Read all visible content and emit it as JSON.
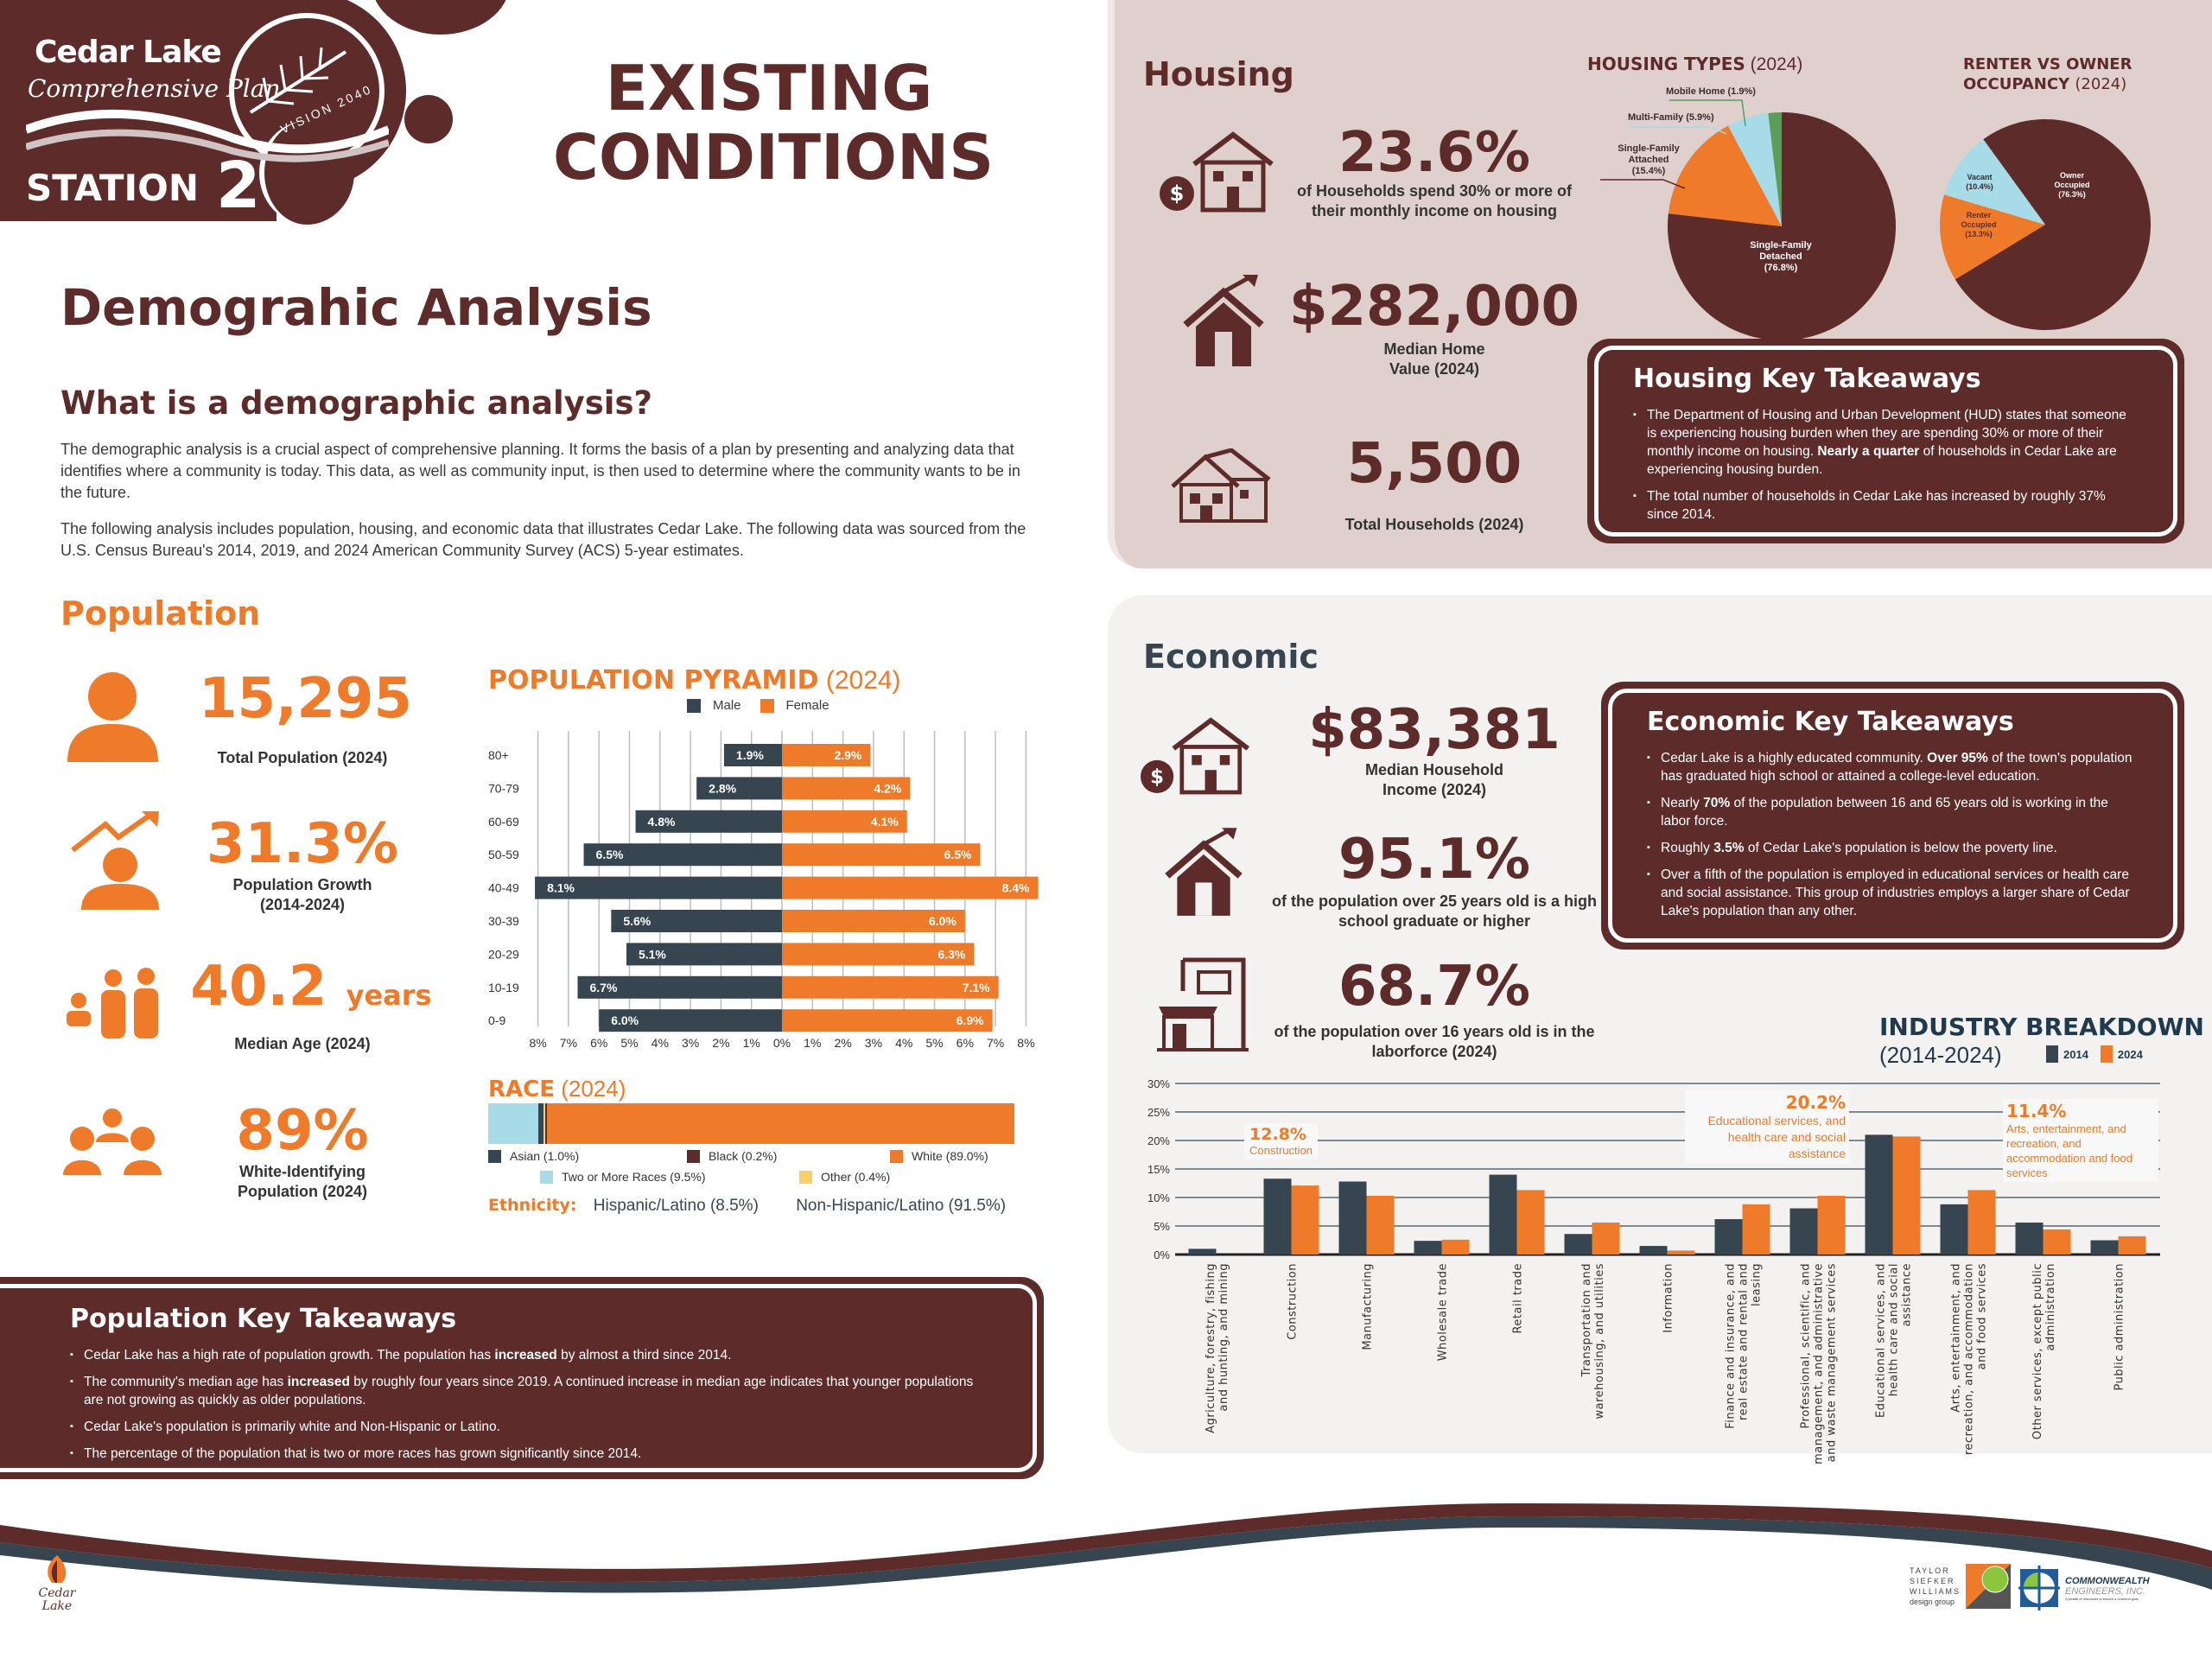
{
  "header": {
    "brand_line1": "Cedar Lake",
    "brand_line2": "Comprehensive Plan",
    "vision": "VISION 2040",
    "station_label": "STATION",
    "station_number": "2",
    "title_line1": "EXISTING",
    "title_line2": "CONDITIONS"
  },
  "intro": {
    "title": "Demograhic Analysis",
    "subtitle": "What is a demographic analysis?",
    "paragraph1": "The demographic analysis is a crucial aspect of comprehensive planning. It forms the basis of a plan by presenting and analyzing data that identifies where a community is today. This data, as well as community input, is then used to determine where the community wants to be in the future.",
    "paragraph2": "The following analysis includes population, housing, and economic data that illustrates Cedar Lake. The following data was sourced from the U.S. Census Bureau's 2014, 2019, and 2024 American Community Survey (ACS) 5-year estimates."
  },
  "population": {
    "heading": "Population",
    "stats": [
      {
        "value": "15,295",
        "label": "Total Population (2024)",
        "icon": "person-icon"
      },
      {
        "value": "31.3%",
        "label": "Population Growth (2014-2024)",
        "icon": "growth-person-icon"
      },
      {
        "value": "40.2",
        "unit": "years",
        "label": "Median Age (2024)",
        "icon": "family-icon"
      },
      {
        "value": "89%",
        "label": "White-Identifying Population (2024)",
        "icon": "group-icon"
      }
    ],
    "takeaways": {
      "title": "Population Key Takeaways",
      "bullets": [
        {
          "pre": "Cedar Lake has a high rate of population growth. The population has ",
          "bold": "increased",
          "post": " by almost a third since 2014."
        },
        {
          "pre": "The community's median age has ",
          "bold": "increased",
          "post": " by roughly four years since 2019. A continued increase in median age indicates that younger populations are not growing as quickly as older populations."
        },
        {
          "pre": "Cedar Lake's population is primarily white and Non-Hispanic or Latino.",
          "bold": "",
          "post": ""
        },
        {
          "pre": "The percentage of the population that is two or more races has grown significantly since 2014.",
          "bold": "",
          "post": ""
        }
      ]
    }
  },
  "race": {
    "title": "RACE",
    "year": "(2024)",
    "segments": [
      {
        "name": "Two or More Races (9.5%)",
        "value": 9.5,
        "color": "#a8dbe8"
      },
      {
        "name": "Asian (1.0%)",
        "value": 1.0,
        "color": "#36454f"
      },
      {
        "name": "Other (0.4%)",
        "value": 0.4,
        "color": "#fbd06b"
      },
      {
        "name": "Black (0.2%)",
        "value": 0.2,
        "color": "#5e2b2b"
      },
      {
        "name": "White (89.0%)",
        "value": 89.0,
        "color": "#ee7a2a"
      }
    ],
    "ethnicity_label": "Ethnicity:",
    "hispanic": "Hispanic/Latino (8.5%)",
    "non_hispanic": "Non-Hispanic/Latino (91.5%)"
  },
  "housing": {
    "heading": "Housing",
    "stats": [
      {
        "value": "23.6%",
        "label": "of Households spend 30% or more of their monthly income on housing"
      },
      {
        "value": "$282,000",
        "label": "Median Home Value (2024)"
      },
      {
        "value": "5,500",
        "label": "Total Households (2024)"
      }
    ],
    "takeaways": {
      "title": "Housing Key Takeaways",
      "bullets": [
        {
          "pre": "The Department of Housing and Urban Development (HUD) states that someone is experiencing housing burden when they are spending 30% or more of their monthly income on housing. ",
          "bold": "Nearly a quarter",
          "post": " of households in Cedar Lake are experiencing housing burden."
        },
        {
          "pre": "The total number of households in Cedar Lake has increased by roughly 37% since 2014.",
          "bold": "",
          "post": ""
        }
      ]
    }
  },
  "economic": {
    "heading": "Economic",
    "stats": [
      {
        "value": "$83,381",
        "label": "Median Household Income (2024)"
      },
      {
        "value": "95.1%",
        "label": "of the population over 25 years old is a high school graduate or higher"
      },
      {
        "value": "68.7%",
        "label": "of the population over 16 years old is in the laborforce (2024)"
      }
    ],
    "takeaways": {
      "title": "Economic Key Takeaways",
      "bullets": [
        {
          "pre": "Cedar Lake is a highly educated community. ",
          "bold": "Over 95%",
          "post": " of the town's population has graduated high school or attained a college-level education."
        },
        {
          "pre": "Nearly ",
          "bold": "70%",
          "post": " of the population between 16 and 65 years old is working in the labor force."
        },
        {
          "pre": "Roughly ",
          "bold": "3.5%",
          "post": " of Cedar Lake's population is below the poverty line."
        },
        {
          "pre": "Over a fifth of the population is employed in educational services or health care and social assistance. This group of industries employs a larger share of Cedar Lake's population than any other.",
          "bold": "",
          "post": ""
        }
      ]
    }
  },
  "footer": {
    "left_logo": "Cedar Lake",
    "logo1_lines": [
      "TAYLOR",
      "SIEFKER",
      "WILLIAMS",
      "design group"
    ],
    "logo2_line1": "COMMONWEALTH",
    "logo2_line2": "ENGINEERS, INC.",
    "logo2_tag": "A wealth of resources to ensure a common goal."
  },
  "colors": {
    "brown": "#5e2b2b",
    "orange": "#ee7a2a",
    "slate": "#36454f",
    "light_blue": "#a8dbe8",
    "green": "#5a9e5a",
    "yellow": "#fbd06b"
  },
  "chart_data": [
    {
      "type": "bar",
      "title": "POPULATION PYRAMID",
      "year": "(2024)",
      "orientation": "horizontal-diverging",
      "categories": [
        "80+",
        "70-79",
        "60-69",
        "50-59",
        "40-49",
        "30-39",
        "20-29",
        "10-19",
        "0-9"
      ],
      "series": [
        {
          "name": "Male",
          "color": "#36454f",
          "values": [
            1.9,
            2.8,
            4.8,
            6.5,
            8.1,
            5.6,
            5.1,
            6.7,
            6.0
          ],
          "labels": [
            "1.9%",
            "2.8%",
            "4.8%",
            "6.5%",
            "8.1%",
            "5.6%",
            "5.1%",
            "6.7%",
            "6.0%"
          ]
        },
        {
          "name": "Female",
          "color": "#ee7a2a",
          "values": [
            2.9,
            4.2,
            4.1,
            6.5,
            8.4,
            6.0,
            6.3,
            7.1,
            6.9
          ],
          "labels": [
            "2.9%",
            "4.2%",
            "4.1%",
            "6.5%",
            "8.4%",
            "6.0%",
            "6.3%",
            "7.1%",
            "6.9%"
          ]
        }
      ],
      "xticks": [
        "8%",
        "7%",
        "6%",
        "5%",
        "4%",
        "3%",
        "2%",
        "1%",
        "0%",
        "1%",
        "2%",
        "3%",
        "4%",
        "5%",
        "6%",
        "7%",
        "8%"
      ],
      "xlim": [
        -8,
        8
      ],
      "grid": true,
      "legend": "top"
    },
    {
      "type": "pie",
      "title": "HOUSING TYPES",
      "year": "(2024)",
      "slices": [
        {
          "label": "Single-Family Detached (76.8%)",
          "value": 76.8,
          "color": "#5e2b2b"
        },
        {
          "label": "Single-Family Attached (15.4%)",
          "value": 15.4,
          "color": "#ee7a2a"
        },
        {
          "label": "Multi-Family (5.9%)",
          "value": 5.9,
          "color": "#a8dbe8"
        },
        {
          "label": "Mobile Home (1.9%)",
          "value": 1.9,
          "color": "#5a9e5a"
        }
      ]
    },
    {
      "type": "pie",
      "title": "RENTER VS OWNER OCCUPANCY",
      "year": "(2024)",
      "slices": [
        {
          "label": "Owner Occupied (76.3%)",
          "value": 76.3,
          "color": "#5e2b2b"
        },
        {
          "label": "Renter Occupied (13.3%)",
          "value": 13.3,
          "color": "#ee7a2a"
        },
        {
          "label": "Vacant (10.4%)",
          "value": 10.4,
          "color": "#a8dbe8"
        }
      ]
    },
    {
      "type": "bar",
      "title": "INDUSTRY BREAKDOWN",
      "subtitle": "(2014-2024)",
      "categories": [
        "Agriculture, forestry, fishing and hunting, and mining",
        "Construction",
        "Manufacturing",
        "Wholesale trade",
        "Retail trade",
        "Transportation and warehousing, and utilities",
        "Information",
        "Finance and insurance, and real estate and rental and leasing",
        "Professional, scientific, and management, and administrative and waste management services",
        "Educational services, and health care and social assistance",
        "Arts, entertainment, and recreation, and accommodation and food services",
        "Other services, except public administration",
        "Public administration"
      ],
      "series": [
        {
          "name": "2014",
          "color": "#36454f",
          "values": [
            1.0,
            13.3,
            12.8,
            2.4,
            14.0,
            3.6,
            1.5,
            6.2,
            8.1,
            21.0,
            8.8,
            5.6,
            2.5
          ]
        },
        {
          "name": "2024",
          "color": "#ee7a2a",
          "values": [
            0.0,
            12.1,
            10.3,
            2.6,
            11.3,
            5.6,
            0.7,
            8.8,
            10.3,
            20.7,
            11.3,
            4.4,
            3.2
          ]
        }
      ],
      "yticks": [
        "0%",
        "5%",
        "10%",
        "15%",
        "20%",
        "25%",
        "30%"
      ],
      "ylim": [
        0,
        30
      ],
      "grid": true,
      "legend": "top-right",
      "annotations": [
        {
          "value": "12.8%",
          "text": "Construction"
        },
        {
          "value": "20.2%",
          "text": "Educational services, and health care and social assistance"
        },
        {
          "value": "11.4%",
          "text": "Arts, entertainment, and recreation, and accommodation and food services"
        }
      ]
    }
  ]
}
